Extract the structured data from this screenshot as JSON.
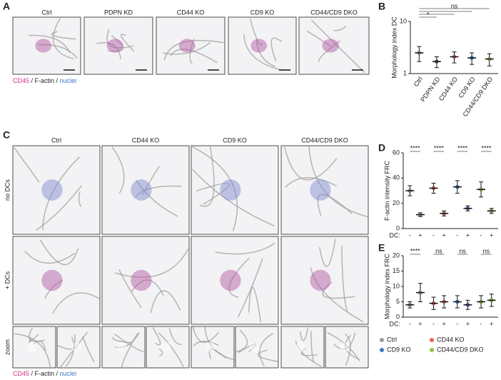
{
  "figure": {
    "panel_labels": [
      "A",
      "B",
      "C",
      "D",
      "E"
    ],
    "a": {
      "captions": [
        "Ctrl",
        "PDPN KD",
        "CD44 KO",
        "CD9 KO",
        "CD44/CD9 DKO"
      ],
      "legend": [
        "CD45",
        " / F-actin / ",
        "nuclei"
      ]
    },
    "c": {
      "columns": [
        "Ctrl",
        "CD44 KO",
        "CD9 KO",
        "CD44/CD9 DKO"
      ],
      "rows": [
        "no DCs",
        "+ DCs",
        "zoom"
      ],
      "legend": [
        "CD45",
        " / F-actin / ",
        "nuclei"
      ]
    }
  },
  "chart_data": [
    {
      "type": "dotplot",
      "ylabel": "Morphology index DC",
      "log": true,
      "ylim": [
        1,
        10
      ],
      "yticks": [
        1,
        10
      ],
      "categories": [
        "Ctrl",
        "PDPN KD",
        "CD44 KO",
        "CD9 KO",
        "CD44/CD9 DKO"
      ],
      "colors": [
        "#9a9a9a",
        "#555555",
        "#e8605a",
        "#3f74c4",
        "#8cc63f"
      ],
      "values": [
        2.5,
        1.7,
        2.1,
        2.0,
        1.9
      ],
      "errors": [
        0.8,
        0.4,
        0.5,
        0.5,
        0.5
      ],
      "comparisons": [
        {
          "pair": [
            "Ctrl",
            "CD44/CD9 DKO"
          ],
          "label": "ns"
        },
        {
          "pair": [
            "Ctrl",
            "CD9 KO"
          ]
        },
        {
          "pair": [
            "Ctrl",
            "CD44 KO"
          ]
        },
        {
          "pair": [
            "Ctrl",
            "PDPN KD"
          ],
          "label": "*"
        }
      ]
    },
    {
      "type": "grouped_dotplot",
      "ylabel": "F-actin intensity FRC",
      "ylim": [
        0,
        60
      ],
      "yticks": [
        0,
        20,
        40,
        60
      ],
      "x_title": "DC:",
      "x_labels": [
        "-",
        "+"
      ],
      "series": [
        {
          "color": "#9a9a9a",
          "values": [
            30,
            11
          ],
          "errors": [
            4,
            1.5
          ]
        },
        {
          "color": "#e8605a",
          "values": [
            32,
            12
          ],
          "errors": [
            4,
            2
          ]
        },
        {
          "color": "#3f74c4",
          "values": [
            33,
            16
          ],
          "errors": [
            5,
            2
          ]
        },
        {
          "color": "#8cc63f",
          "values": [
            31,
            14
          ],
          "errors": [
            6,
            2
          ]
        }
      ],
      "annotations": [
        "****",
        "****",
        "****",
        "****"
      ]
    },
    {
      "type": "grouped_dotplot",
      "ylabel": "Morphology index FRC",
      "ylim": [
        0,
        20
      ],
      "yticks": [
        0,
        5,
        10,
        15,
        20
      ],
      "x_title": "DC:",
      "x_labels": [
        "-",
        "+"
      ],
      "series": [
        {
          "name": "Ctrl",
          "color": "#9a9a9a",
          "values": [
            4,
            8
          ],
          "errors": [
            1,
            3
          ]
        },
        {
          "name": "CD44 KO",
          "color": "#e8605a",
          "values": [
            4.5,
            5
          ],
          "errors": [
            2,
            2
          ]
        },
        {
          "name": "CD9 KO",
          "color": "#3f74c4",
          "values": [
            5,
            4
          ],
          "errors": [
            2,
            1.5
          ]
        },
        {
          "name": "CD44/CD9 DKO",
          "color": "#8cc63f",
          "values": [
            5,
            5.5
          ],
          "errors": [
            2,
            2
          ]
        }
      ],
      "annotations": [
        "****",
        "ns",
        "ns",
        "ns"
      ],
      "legend": true
    }
  ]
}
